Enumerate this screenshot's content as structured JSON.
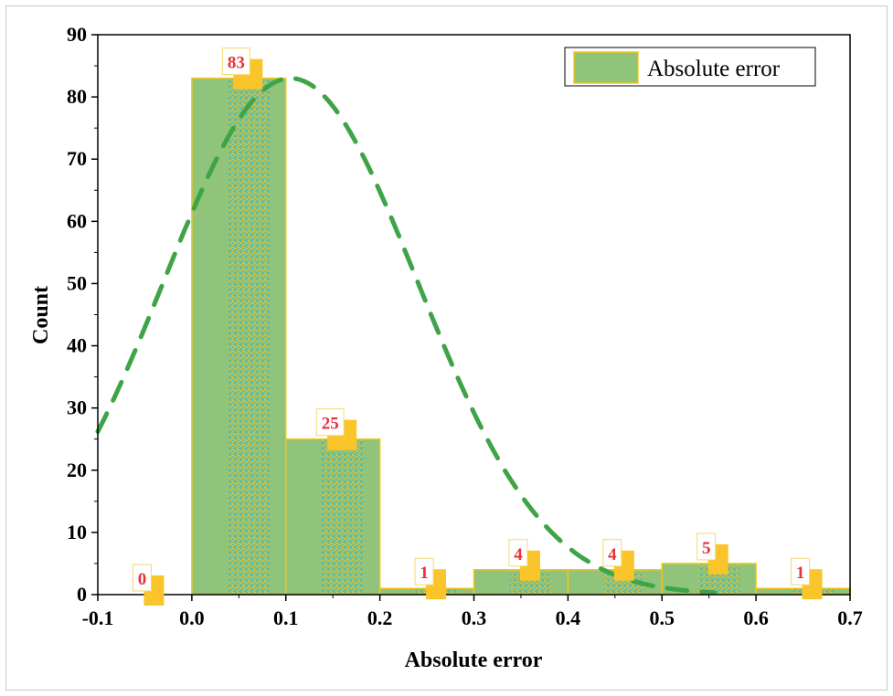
{
  "chart_data": {
    "type": "bar",
    "title": "",
    "xlabel": "Absolute error",
    "ylabel": "Count",
    "xlim": [
      -0.1,
      0.7
    ],
    "ylim": [
      0,
      90
    ],
    "xticks": [
      "-0.1",
      "0.0",
      "0.1",
      "0.2",
      "0.3",
      "0.4",
      "0.5",
      "0.6",
      "0.7"
    ],
    "yticks": [
      "0",
      "10",
      "20",
      "30",
      "40",
      "50",
      "60",
      "70",
      "80",
      "90"
    ],
    "bins": [
      [
        -0.1,
        0.0
      ],
      [
        0.0,
        0.1
      ],
      [
        0.1,
        0.2
      ],
      [
        0.2,
        0.3
      ],
      [
        0.3,
        0.4
      ],
      [
        0.4,
        0.5
      ],
      [
        0.5,
        0.6
      ],
      [
        0.6,
        0.7
      ]
    ],
    "values": [
      0,
      83,
      25,
      1,
      4,
      4,
      5,
      1
    ],
    "data_labels": [
      "0",
      "83",
      "25",
      "1",
      "4",
      "4",
      "5",
      "1"
    ],
    "legend": {
      "entries": [
        "Absolute error"
      ],
      "placement": "top-right"
    },
    "fit_curve": {
      "type": "normal",
      "peak": 83,
      "mean": 0.105,
      "sd": 0.135,
      "style": "dashed"
    },
    "colors": {
      "bar": "#8fc47a",
      "bar_edge": "#f5c518",
      "curve": "#3fa447",
      "label_text": "#e8303a",
      "label_shadow": "#f9c52b"
    }
  }
}
